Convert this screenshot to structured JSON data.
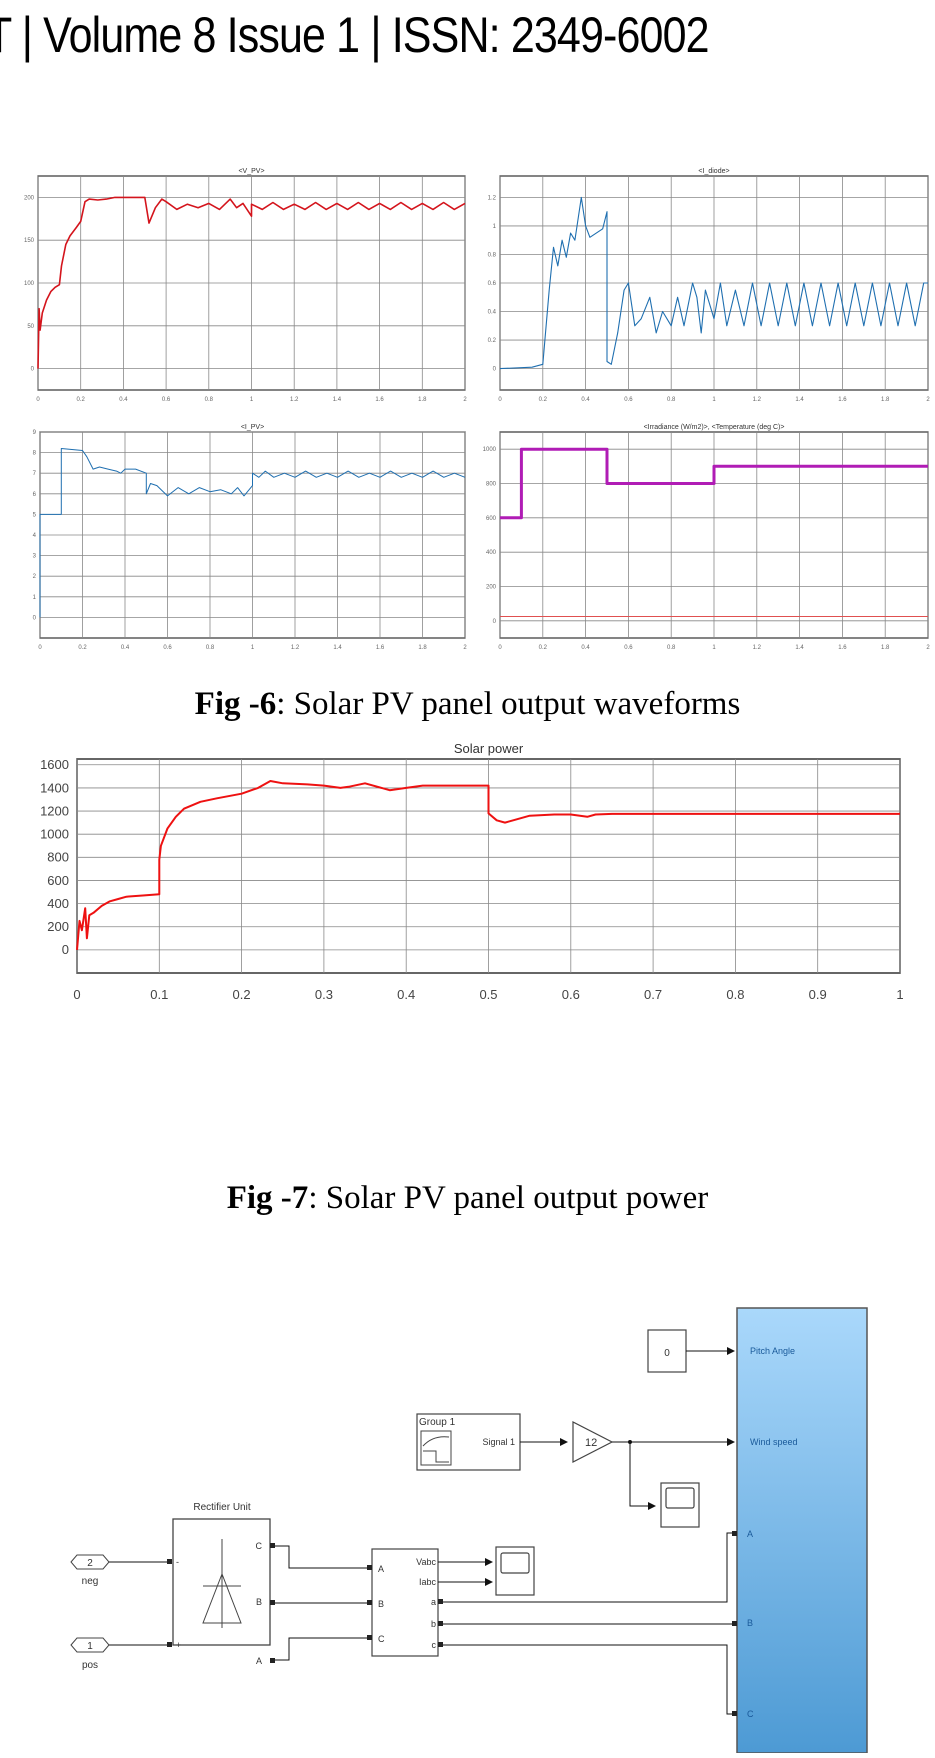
{
  "header": {
    "text": "| Volume 8 Issue 1 | ISSN: 2349-6002",
    "leading_fragment": "T"
  },
  "fig6": {
    "caption_bold": "Fig -6",
    "caption_rest": ": Solar PV panel output waveforms"
  },
  "fig7": {
    "caption_bold": "Fig -7",
    "caption_rest": ": Solar PV panel output power"
  },
  "chart_data": [
    {
      "id": "v_pv",
      "type": "line",
      "title": "<V_PV>",
      "xlabel": "",
      "ylabel": "",
      "xlim": [
        0,
        2
      ],
      "ylim": [
        -25,
        225
      ],
      "x_ticks": [
        "0",
        "0.2",
        "0.4",
        "0.6",
        "0.8",
        "1",
        "1.2",
        "1.4",
        "1.6",
        "1.8",
        "2"
      ],
      "y_ticks": [
        "0",
        "50",
        "100",
        "150",
        "200"
      ],
      "y_tick_values": [
        0,
        50,
        100,
        150,
        200
      ],
      "grid": true,
      "series": [
        {
          "name": "V_PV",
          "color": "#d4141c",
          "x": [
            0,
            0.005,
            0.01,
            0.02,
            0.04,
            0.06,
            0.08,
            0.1,
            0.11,
            0.13,
            0.15,
            0.18,
            0.2,
            0.22,
            0.24,
            0.28,
            0.32,
            0.36,
            0.4,
            0.45,
            0.5,
            0.52,
            0.55,
            0.58,
            0.6,
            0.65,
            0.7,
            0.75,
            0.8,
            0.85,
            0.9,
            0.93,
            0.96,
            1.0,
            1.0,
            1.05,
            1.1,
            1.15,
            1.2,
            1.25,
            1.3,
            1.35,
            1.4,
            1.45,
            1.5,
            1.55,
            1.6,
            1.65,
            1.7,
            1.75,
            1.8,
            1.85,
            1.9,
            1.95,
            2.0
          ],
          "y": [
            0,
            70,
            45,
            65,
            80,
            90,
            95,
            98,
            120,
            145,
            155,
            165,
            172,
            195,
            198,
            197,
            198,
            200,
            200,
            200,
            200,
            170,
            188,
            198,
            195,
            186,
            192,
            188,
            193,
            186,
            198,
            188,
            193,
            178,
            192,
            186,
            194,
            186,
            192,
            186,
            194,
            186,
            193,
            186,
            194,
            186,
            193,
            186,
            194,
            186,
            193,
            186,
            194,
            186,
            193
          ]
        }
      ]
    },
    {
      "id": "i_diode",
      "type": "line",
      "title": "<I_diode>",
      "xlabel": "",
      "ylabel": "",
      "xlim": [
        0,
        2
      ],
      "ylim": [
        -0.15,
        1.35
      ],
      "x_ticks": [
        "0",
        "0.2",
        "0.4",
        "0.6",
        "0.8",
        "1",
        "1.2",
        "1.4",
        "1.6",
        "1.8",
        "2"
      ],
      "y_ticks": [
        "0",
        "0.2",
        "0.4",
        "0.6",
        "0.8",
        "1",
        "1.2"
      ],
      "y_tick_values": [
        0,
        0.2,
        0.4,
        0.6,
        0.8,
        1.0,
        1.2
      ],
      "grid": true,
      "series": [
        {
          "name": "I_diode",
          "color": "#1f6fb0",
          "x": [
            0,
            0.15,
            0.2,
            0.23,
            0.25,
            0.27,
            0.29,
            0.31,
            0.33,
            0.35,
            0.38,
            0.4,
            0.42,
            0.45,
            0.48,
            0.5,
            0.5,
            0.52,
            0.55,
            0.58,
            0.6,
            0.63,
            0.66,
            0.7,
            0.73,
            0.76,
            0.8,
            0.83,
            0.86,
            0.9,
            0.92,
            0.94,
            0.96,
            1.0,
            1.03,
            1.06,
            1.1,
            1.14,
            1.18,
            1.22,
            1.26,
            1.3,
            1.34,
            1.38,
            1.42,
            1.46,
            1.5,
            1.54,
            1.58,
            1.62,
            1.66,
            1.7,
            1.74,
            1.78,
            1.82,
            1.86,
            1.9,
            1.94,
            1.98,
            2.0
          ],
          "y": [
            0,
            0.01,
            0.03,
            0.55,
            0.85,
            0.72,
            0.9,
            0.78,
            0.95,
            0.9,
            1.2,
            1.0,
            0.92,
            0.95,
            0.98,
            1.1,
            0.05,
            0.03,
            0.25,
            0.55,
            0.6,
            0.3,
            0.35,
            0.5,
            0.25,
            0.4,
            0.3,
            0.5,
            0.3,
            0.6,
            0.5,
            0.25,
            0.55,
            0.35,
            0.6,
            0.3,
            0.55,
            0.3,
            0.6,
            0.3,
            0.6,
            0.3,
            0.6,
            0.3,
            0.6,
            0.3,
            0.6,
            0.3,
            0.6,
            0.3,
            0.6,
            0.3,
            0.6,
            0.3,
            0.6,
            0.3,
            0.6,
            0.3,
            0.6,
            0.6
          ]
        }
      ]
    },
    {
      "id": "i_pv",
      "type": "line",
      "title": "<I_PV>",
      "xlabel": "",
      "ylabel": "",
      "xlim": [
        0,
        2
      ],
      "ylim": [
        -1,
        9
      ],
      "x_ticks": [
        "0",
        "0.2",
        "0.4",
        "0.6",
        "0.8",
        "1",
        "1.2",
        "1.4",
        "1.6",
        "1.8",
        "2"
      ],
      "y_ticks": [
        "0",
        "1",
        "2",
        "3",
        "4",
        "5",
        "6",
        "7",
        "8",
        "9"
      ],
      "y_tick_values": [
        0,
        1,
        2,
        3,
        4,
        5,
        6,
        7,
        8,
        9
      ],
      "grid": true,
      "series": [
        {
          "name": "I_PV",
          "color": "#1f6fb0",
          "x": [
            0,
            0,
            0.1,
            0.1,
            0.2,
            0.22,
            0.25,
            0.28,
            0.32,
            0.36,
            0.38,
            0.4,
            0.45,
            0.5,
            0.5,
            0.52,
            0.55,
            0.6,
            0.65,
            0.7,
            0.75,
            0.8,
            0.85,
            0.9,
            0.93,
            0.96,
            1.0,
            1.0,
            1.03,
            1.06,
            1.1,
            1.15,
            1.2,
            1.25,
            1.3,
            1.35,
            1.4,
            1.45,
            1.5,
            1.55,
            1.6,
            1.65,
            1.7,
            1.75,
            1.8,
            1.85,
            1.9,
            1.95,
            2.0
          ],
          "y": [
            0,
            5,
            5,
            8.2,
            8.1,
            7.8,
            7.2,
            7.3,
            7.2,
            7.1,
            7.0,
            7.2,
            7.2,
            7.0,
            6.0,
            6.5,
            6.4,
            5.9,
            6.3,
            6.0,
            6.3,
            6.1,
            6.2,
            6.0,
            6.3,
            5.9,
            6.4,
            7.0,
            6.8,
            7.1,
            6.8,
            7.0,
            6.8,
            7.1,
            6.8,
            7.0,
            6.8,
            7.1,
            6.8,
            7.0,
            6.8,
            7.1,
            6.8,
            7.0,
            6.8,
            7.1,
            6.8,
            7.0,
            6.8
          ]
        }
      ]
    },
    {
      "id": "irradiance_temperature",
      "type": "line",
      "title": "<Irradiance (W/m2)>, <Temperature (deg C)>",
      "xlabel": "",
      "ylabel": "",
      "xlim": [
        0,
        2
      ],
      "ylim": [
        -100,
        1100
      ],
      "x_ticks": [
        "0",
        "0.2",
        "0.4",
        "0.6",
        "0.8",
        "1",
        "1.2",
        "1.4",
        "1.6",
        "1.8",
        "2"
      ],
      "y_ticks": [
        "0",
        "200",
        "400",
        "600",
        "800",
        "1000"
      ],
      "y_tick_values": [
        0,
        200,
        400,
        600,
        800,
        1000
      ],
      "grid": true,
      "series": [
        {
          "name": "Irradiance (W/m2)",
          "color": "#b01cb5",
          "x": [
            0,
            0.1,
            0.1,
            0.5,
            0.5,
            1.0,
            1.0,
            2.0
          ],
          "y": [
            600,
            600,
            1000,
            1000,
            800,
            800,
            900,
            900
          ]
        },
        {
          "name": "Temperature (deg C)",
          "color": "#e05050",
          "x": [
            0,
            2
          ],
          "y": [
            25,
            25
          ]
        }
      ]
    },
    {
      "id": "solar_power",
      "type": "line",
      "title": "Solar power",
      "xlabel": "",
      "ylabel": "",
      "xlim": [
        0,
        1
      ],
      "ylim": [
        -200,
        1650
      ],
      "x_ticks": [
        "0",
        "0.1",
        "0.2",
        "0.3",
        "0.4",
        "0.5",
        "0.6",
        "0.7",
        "0.8",
        "0.9",
        "1"
      ],
      "y_ticks": [
        "0",
        "200",
        "400",
        "600",
        "800",
        "1000",
        "1200",
        "1400",
        "1600"
      ],
      "y_tick_values": [
        0,
        200,
        400,
        600,
        800,
        1000,
        1200,
        1400,
        1600
      ],
      "grid": true,
      "series": [
        {
          "name": "Solar power",
          "color": "#ee1111",
          "x": [
            0,
            0.003,
            0.006,
            0.01,
            0.012,
            0.015,
            0.02,
            0.03,
            0.04,
            0.05,
            0.06,
            0.08,
            0.1,
            0.1,
            0.102,
            0.11,
            0.12,
            0.13,
            0.15,
            0.17,
            0.2,
            0.22,
            0.235,
            0.25,
            0.28,
            0.3,
            0.32,
            0.33,
            0.35,
            0.38,
            0.4,
            0.42,
            0.45,
            0.5,
            0.5,
            0.51,
            0.52,
            0.53,
            0.55,
            0.58,
            0.6,
            0.62,
            0.63,
            0.65,
            0.7,
            0.8,
            0.9,
            1.0
          ],
          "y": [
            0,
            250,
            170,
            360,
            100,
            300,
            320,
            380,
            420,
            440,
            460,
            470,
            480,
            780,
            900,
            1050,
            1150,
            1220,
            1280,
            1310,
            1350,
            1400,
            1460,
            1440,
            1430,
            1420,
            1400,
            1410,
            1440,
            1380,
            1400,
            1420,
            1420,
            1420,
            1180,
            1120,
            1100,
            1120,
            1160,
            1170,
            1170,
            1150,
            1170,
            1175,
            1175,
            1175,
            1175,
            1175
          ]
        }
      ]
    }
  ],
  "diagram": {
    "constant_block": {
      "value": "0"
    },
    "signal_builder": {
      "title": "Group 1",
      "output": "Signal 1"
    },
    "gain_block": {
      "value": "12"
    },
    "rectifier": {
      "title": "Rectifier Unit",
      "ports_left": [
        "-",
        "+"
      ],
      "ports_right": [
        "C",
        "B",
        "A"
      ]
    },
    "in_port_neg": {
      "number": "2",
      "label": "neg"
    },
    "in_port_pos": {
      "number": "1",
      "label": "pos"
    },
    "measurement": {
      "inputs": [
        "A",
        "B",
        "C"
      ],
      "outputs": [
        "Vabc",
        "Iabc",
        "a",
        "b",
        "c"
      ]
    },
    "wind_turbine": {
      "ports": [
        "Pitch Angle",
        "Wind speed",
        "A",
        "B",
        "C"
      ]
    }
  }
}
